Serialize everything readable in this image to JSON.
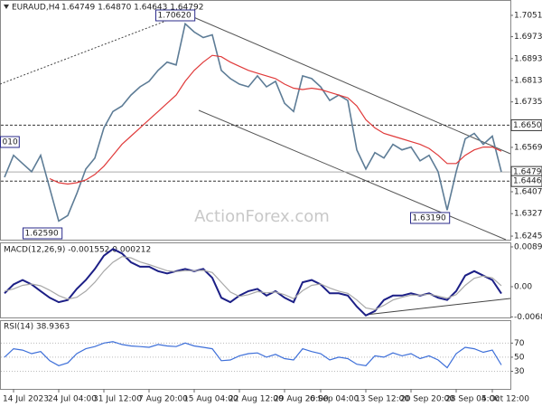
{
  "header": {
    "symbol": "EURAUD,H4",
    "ohlc": "1.64749 1.64870 1.64643 1.64792"
  },
  "watermark": "ActionForex.com",
  "chart_data": [
    {
      "type": "line",
      "categories": [
        null,
        "14 Jul 2023",
        null,
        null,
        null,
        null,
        "24 Jul 04:00",
        null,
        null,
        null,
        null,
        "31 Jul 12:00",
        null,
        null,
        null,
        null,
        "7 Aug 20:00",
        null,
        null,
        null,
        null,
        "15 Aug 04:00",
        null,
        null,
        null,
        null,
        "22 Aug 12:00",
        null,
        null,
        null,
        null,
        "29 Aug 20:00",
        null,
        null,
        null,
        "6 Sep 04:00",
        null,
        null,
        null,
        null,
        "13 Sep 12:00",
        null,
        null,
        null,
        null,
        "20 Sep 20:00",
        null,
        null,
        null,
        null,
        "28 Sep 04:00",
        null,
        null,
        null,
        "5 Oct 12:00",
        null
      ],
      "series": [
        {
          "color": "#5d7c96",
          "values": [
            1.646,
            1.654,
            1.651,
            1.648,
            1.654,
            1.642,
            1.63,
            1.632,
            1.64,
            1.649,
            1.653,
            1.664,
            1.67,
            1.672,
            1.676,
            1.679,
            1.681,
            1.685,
            1.688,
            1.687,
            1.702,
            1.699,
            1.697,
            1.698,
            1.685,
            1.682,
            1.68,
            1.679,
            1.683,
            1.679,
            1.681,
            1.673,
            1.67,
            1.683,
            1.682,
            1.679,
            1.674,
            1.676,
            1.674,
            1.656,
            1.649,
            1.655,
            1.653,
            1.658,
            1.656,
            1.657,
            1.652,
            1.654,
            1.648,
            1.634,
            1.648,
            1.66,
            1.662,
            1.658,
            1.661,
            1.64792
          ]
        },
        {
          "color": "#e03a3a",
          "values": [
            null,
            null,
            null,
            null,
            null,
            1.6455,
            1.644,
            1.6435,
            1.644,
            1.645,
            1.647,
            1.65,
            1.654,
            1.658,
            1.661,
            1.664,
            1.667,
            1.67,
            1.673,
            1.676,
            1.681,
            1.685,
            1.688,
            1.6905,
            1.69,
            1.688,
            1.6865,
            1.685,
            1.684,
            1.683,
            1.682,
            1.68,
            1.6785,
            1.678,
            1.6785,
            1.678,
            1.677,
            1.676,
            1.675,
            1.672,
            1.667,
            1.664,
            1.662,
            1.661,
            1.66,
            1.659,
            1.658,
            1.6565,
            1.654,
            1.651,
            1.651,
            1.654,
            1.656,
            1.657,
            1.657,
            1.6555
          ]
        }
      ],
      "ylim": [
        1.6232,
        1.7107
      ],
      "yticks": [
        {
          "value": 1.7051,
          "label": "1.70510"
        },
        {
          "value": 1.6973,
          "label": "1.69730"
        },
        {
          "value": 1.6893,
          "label": "1.68930"
        },
        {
          "value": 1.6813,
          "label": "1.68130"
        },
        {
          "value": 1.6735,
          "label": "1.67350"
        },
        {
          "value": 1.6569,
          "label": "1.65690"
        },
        {
          "value": 1.6407,
          "label": "1.64070"
        },
        {
          "value": 1.6327,
          "label": "1.63270"
        },
        {
          "value": 1.6245,
          "label": "1.62450"
        }
      ],
      "levels": [
        {
          "value": 1.665,
          "label": "1.66500",
          "style": "dashed"
        },
        {
          "value": 1.64792,
          "label": "1.64792",
          "style": "solid"
        },
        {
          "value": 1.6446,
          "label": "1.64460",
          "style": "dashed"
        }
      ],
      "annotations": [
        "1.70620",
        "1.63190",
        "1.62590",
        "010"
      ]
    },
    {
      "type": "line",
      "title": "MACD(12,26,9) -0.001552 0.000212",
      "series": [
        {
          "color": "#1c1f86",
          "values": [
            -0.0015,
            0.0005,
            0.0015,
            0.0005,
            -0.001,
            -0.0025,
            -0.0035,
            -0.003,
            -0.0005,
            0.0015,
            0.004,
            0.007,
            0.0085,
            0.0075,
            0.0055,
            0.0045,
            0.0045,
            0.0035,
            0.003,
            0.0035,
            0.004,
            0.0035,
            0.004,
            0.002,
            -0.0025,
            -0.0035,
            -0.002,
            -0.001,
            -0.0005,
            -0.002,
            -0.001,
            -0.0025,
            -0.0035,
            0.001,
            0.0015,
            0.0005,
            -0.0015,
            -0.0015,
            -0.002,
            -0.0045,
            -0.0065,
            -0.0055,
            -0.003,
            -0.002,
            -0.002,
            -0.0015,
            -0.002,
            -0.0015,
            -0.0025,
            -0.003,
            -0.001,
            0.0025,
            0.0035,
            0.0025,
            0.0015,
            -0.001552
          ]
        },
        {
          "color": "#a8a8a8",
          "values": [
            -0.001,
            -0.0005,
            0.0003,
            0.0006,
            0.0002,
            -0.0008,
            -0.002,
            -0.0028,
            -0.0024,
            -0.001,
            0.001,
            0.0035,
            0.0055,
            0.0068,
            0.0065,
            0.0056,
            0.005,
            0.0043,
            0.0036,
            0.0034,
            0.0036,
            0.0036,
            0.0037,
            0.0032,
            0.001,
            -0.0012,
            -0.0022,
            -0.0018,
            -0.0011,
            -0.0014,
            -0.0012,
            -0.0018,
            -0.0027,
            -0.0009,
            0.0003,
            0.0006,
            -0.0003,
            -0.001,
            -0.0015,
            -0.003,
            -0.0048,
            -0.0052,
            -0.0042,
            -0.003,
            -0.0024,
            -0.0019,
            -0.0019,
            -0.0017,
            -0.0021,
            -0.0026,
            -0.0018,
            0.0003,
            0.0019,
            0.0024,
            0.002,
            0.000212
          ]
        }
      ],
      "ylim": [
        -0.00715,
        0.01
      ],
      "yticks": [
        0.008986,
        {
          "value": 0,
          "label": "0.00"
        },
        -0.006816
      ]
    },
    {
      "type": "line",
      "title": "RSI(14) 38.9363",
      "series": [
        {
          "color": "#3d6fd9",
          "values": [
            50,
            62,
            60,
            55,
            58,
            45,
            38,
            42,
            55,
            62,
            65,
            70,
            72,
            68,
            66,
            65,
            64,
            68,
            66,
            65,
            70,
            66,
            64,
            62,
            45,
            46,
            52,
            55,
            56,
            50,
            54,
            48,
            46,
            62,
            58,
            55,
            46,
            50,
            48,
            40,
            38,
            52,
            50,
            56,
            52,
            55,
            48,
            52,
            46,
            35,
            55,
            64,
            62,
            57,
            60,
            38.9363
          ]
        }
      ],
      "ylim": [
        5,
        102.5
      ],
      "yticks": [
        70,
        50,
        30
      ]
    }
  ]
}
